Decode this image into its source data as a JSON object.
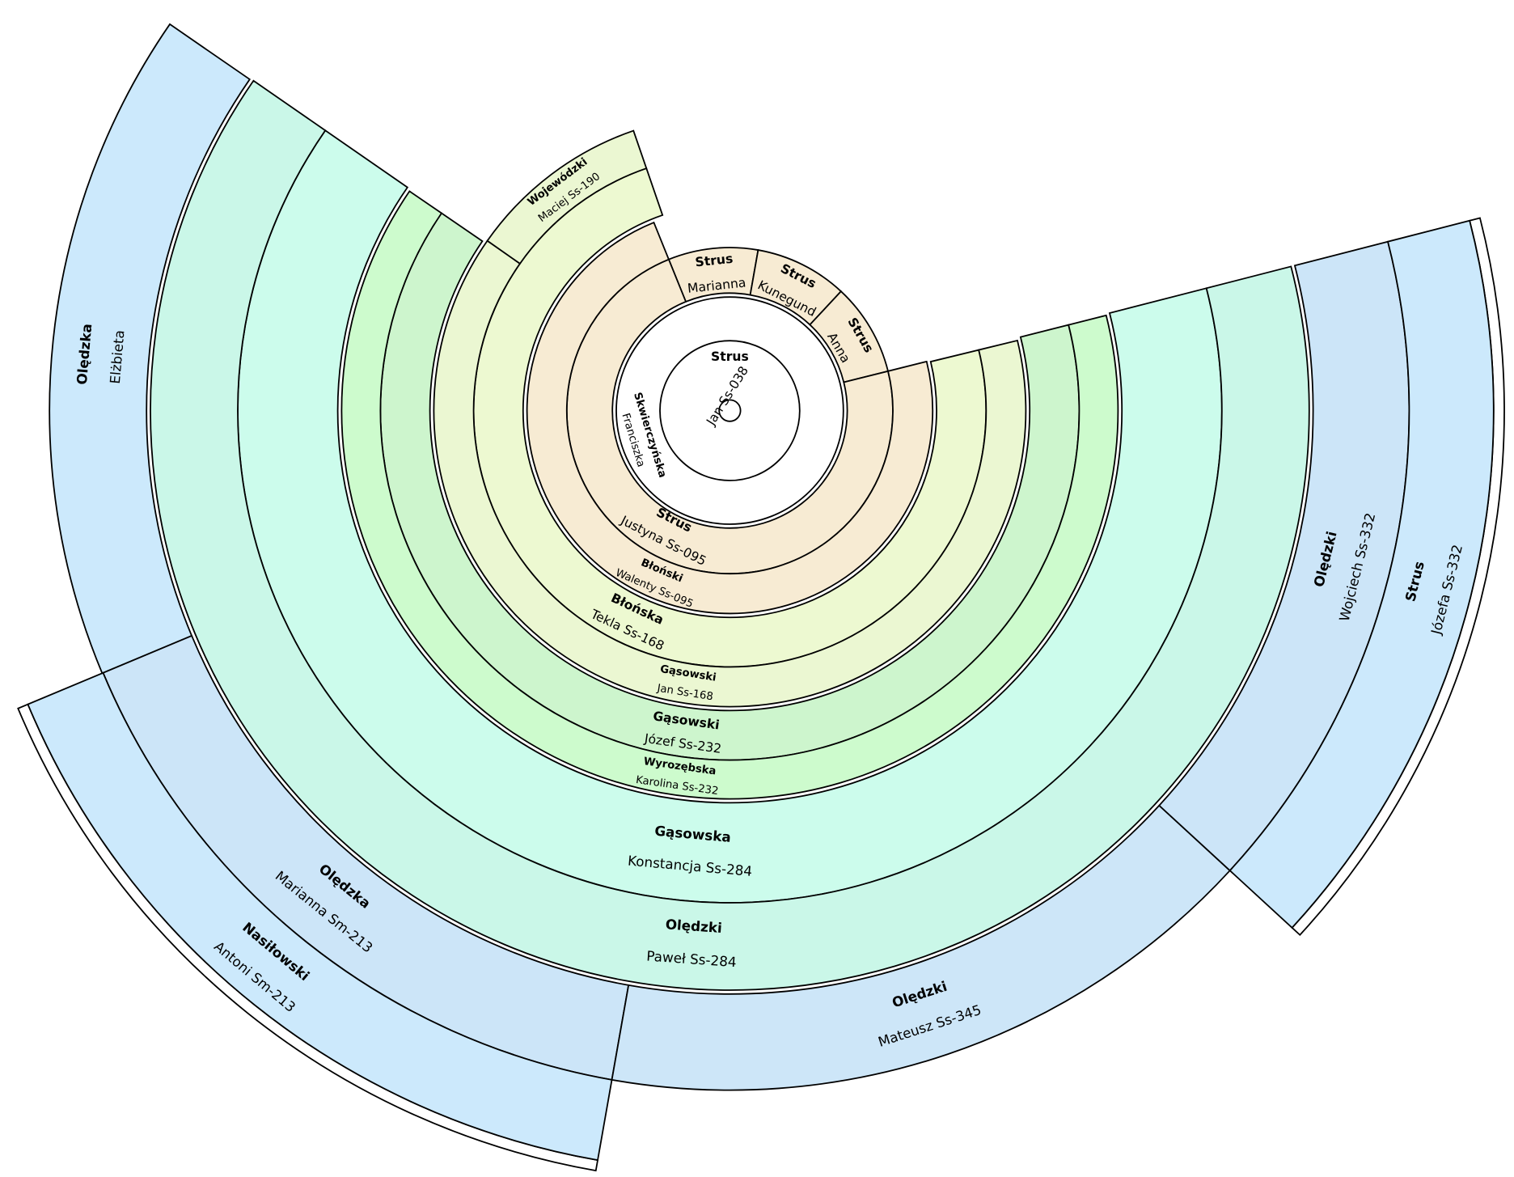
{
  "center": {
    "surname": "Strus",
    "given": "Jan Ss-038"
  },
  "persons": [
    {
      "surname": "Skwierczyńska",
      "given": "Franciszka"
    },
    {
      "surname": "Strus",
      "given": "Marianna"
    },
    {
      "surname": "Strus",
      "given": "Kunegund"
    },
    {
      "surname": "Strus",
      "given": "Anna"
    },
    {
      "surname": "Strus",
      "given": "Justyna Ss-095"
    },
    {
      "surname": "Błoński",
      "given": "Walenty Ss-095"
    },
    {
      "surname": "Błońska",
      "given": "Tekla Ss-168"
    },
    {
      "surname": "Gąsowski",
      "given": "Jan Ss-168"
    },
    {
      "surname": "Wojewódzki",
      "given": "Maciej Ss-190"
    },
    {
      "surname": "Gąsowski",
      "given": "Józef Ss-232"
    },
    {
      "surname": "Wyrozębska",
      "given": "Karolina Ss-232"
    },
    {
      "surname": "Gąsowska",
      "given": "Konstancja Ss-284"
    },
    {
      "surname": "Olędzki",
      "given": "Paweł Ss-284"
    },
    {
      "surname": "Olędzka",
      "given": "Elżbieta"
    },
    {
      "surname": "Olędzka",
      "given": "Marianna Sm-213"
    },
    {
      "surname": "Nasiłowski",
      "given": "Antoni Sm-213"
    },
    {
      "surname": "Olędzki",
      "given": "Mateusz Ss-345"
    },
    {
      "surname": "Olędzki",
      "given": "Wojciech Ss-332"
    },
    {
      "surname": "Strus",
      "given": "Józefa Ss-332"
    }
  ]
}
